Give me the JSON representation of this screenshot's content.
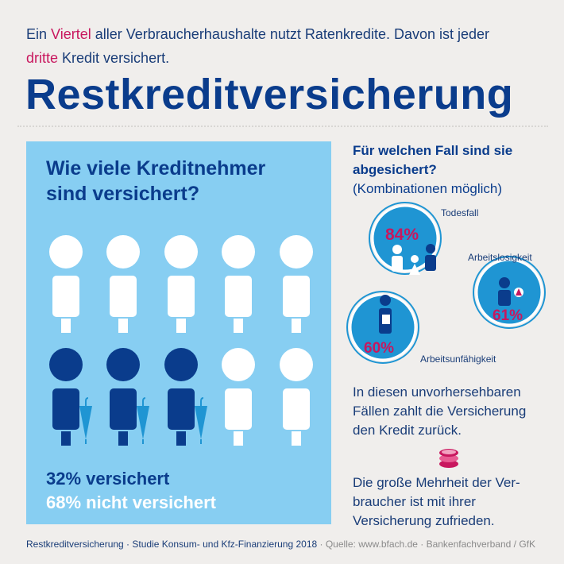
{
  "intro": {
    "part1": "Ein ",
    "highlight1": "Viertel",
    "part2": " aller Verbraucherhaushalte nutzt Ratenkredite. Davon ist jeder",
    "highlight2": "dritte",
    "part3": " Kredit versichert."
  },
  "title": "Restkreditversicherung",
  "panel": {
    "question_line1": "Wie viele Kreditnehmer",
    "question_line2": "sind versichert?",
    "insured": "32% versichert",
    "not_insured": "68% nicht versichert",
    "insured_share": 0.32
  },
  "coverage": {
    "heading_line1": "Für welchen Fall sind sie",
    "heading_line2": "abgesichert?",
    "subheading": "(Kombinationen möglich)",
    "cases": [
      {
        "label": "Todesfall",
        "value": "84%"
      },
      {
        "label": "Arbeitslosigkeit",
        "value": "61%"
      },
      {
        "label": "Arbeitsunfähigkeit",
        "value": "60%"
      }
    ]
  },
  "body1": [
    "In diesen unvorhersehbaren",
    "Fällen zahlt die Versicherung",
    "den Kredit zurück."
  ],
  "body2": [
    "Die große Mehrheit der Ver-",
    "braucher ist mit ihrer",
    "Versicherung zufrieden."
  ],
  "footer": {
    "main": "Restkreditversicherung · Studie Konsum- und Kfz-Finanzierung 2018",
    "source": " · Quelle: www.bfach.de · Bankenfachverband / GfK"
  },
  "colors": {
    "background": "#f0eeec",
    "dark_blue": "#0a3c8c",
    "panel_blue": "#87cef2",
    "mid_blue": "#1f95d3",
    "accent_magenta": "#c8175e"
  }
}
